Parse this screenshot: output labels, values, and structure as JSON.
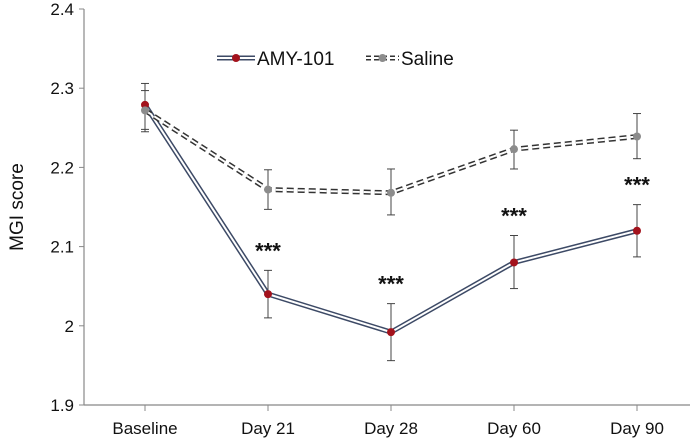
{
  "chart_data": {
    "type": "line",
    "title": "",
    "xlabel": "",
    "ylabel": "MGI score",
    "ylim": [
      1.9,
      2.4
    ],
    "yticks": [
      "1.9",
      "2",
      "2.1",
      "2.2",
      "2.3",
      "2.4"
    ],
    "categories": [
      "Baseline",
      "Day 21",
      "Day 28",
      "Day 60",
      "Day 90"
    ],
    "grid": false,
    "legend": "top-center",
    "series": [
      {
        "name": "AMY-101",
        "values": [
          2.279,
          2.04,
          1.992,
          2.08,
          2.12
        ],
        "error_low": [
          2.248,
          2.01,
          1.956,
          2.047,
          2.087
        ],
        "error_high": [
          2.306,
          2.07,
          2.028,
          2.114,
          2.153
        ],
        "line_color": "#3d4a66",
        "marker_color": "#a3121c",
        "style": "double-solid"
      },
      {
        "name": "Saline",
        "values": [
          2.272,
          2.172,
          2.168,
          2.223,
          2.239
        ],
        "error_low": [
          2.245,
          2.147,
          2.14,
          2.198,
          2.211
        ],
        "error_high": [
          2.297,
          2.197,
          2.198,
          2.247,
          2.268
        ],
        "line_color": "#333333",
        "marker_color": "#8c8c8c",
        "style": "double-dashed"
      }
    ],
    "annotations": [
      "",
      "***",
      "***",
      "***",
      "***"
    ]
  }
}
